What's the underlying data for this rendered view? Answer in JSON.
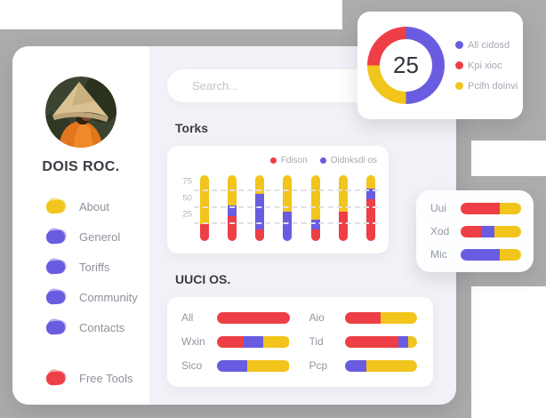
{
  "palette": {
    "red": "#ee3e46",
    "yellow": "#f2c51d",
    "purple": "#6a5ce0",
    "background_gray": "#acacac"
  },
  "sidebar": {
    "profile_name": "DOIS ROC.",
    "items": [
      {
        "label": "About",
        "color": "yellow"
      },
      {
        "label": "Generol",
        "color": "purple"
      },
      {
        "label": "Toriffs",
        "color": "purple"
      },
      {
        "label": "Community",
        "color": "purple"
      },
      {
        "label": "Contacts",
        "color": "purple"
      }
    ],
    "footer_item": {
      "label": "Free Tools",
      "color": "red"
    }
  },
  "search": {
    "placeholder": "Search..."
  },
  "torks": {
    "title": "Torks",
    "legend": [
      {
        "label": "Fdison",
        "color": "red"
      },
      {
        "label": "Oidnksdi os",
        "color": "purple"
      }
    ],
    "y_ticks": [
      75,
      50,
      25
    ],
    "y_max": 105,
    "bars": [
      {
        "segments": [
          {
            "color": "red",
            "pct": 25
          },
          {
            "color": "yellow",
            "pct": 75
          }
        ]
      },
      {
        "segments": [
          {
            "color": "red",
            "pct": 38
          },
          {
            "color": "purple",
            "pct": 16
          },
          {
            "color": "yellow",
            "pct": 46
          }
        ]
      },
      {
        "segments": [
          {
            "color": "red",
            "pct": 17
          },
          {
            "color": "purple",
            "pct": 55
          },
          {
            "color": "yellow",
            "pct": 28
          }
        ]
      },
      {
        "segments": [
          {
            "color": "purple",
            "pct": 45
          },
          {
            "color": "yellow",
            "pct": 55
          }
        ]
      },
      {
        "segments": [
          {
            "color": "red",
            "pct": 17
          },
          {
            "color": "purple",
            "pct": 16
          },
          {
            "color": "yellow",
            "pct": 67
          }
        ]
      },
      {
        "segments": [
          {
            "color": "red",
            "pct": 45
          },
          {
            "color": "yellow",
            "pct": 55
          }
        ]
      },
      {
        "segments": [
          {
            "color": "red",
            "pct": 64
          },
          {
            "color": "purple",
            "pct": 15
          },
          {
            "color": "yellow",
            "pct": 21
          }
        ]
      }
    ]
  },
  "uuci": {
    "title": "UUCI OS.",
    "columns": [
      [
        {
          "label": "All",
          "segments": [
            {
              "color": "red",
              "pct": 100
            }
          ]
        },
        {
          "label": "Wxin",
          "segments": [
            {
              "color": "red",
              "pct": 37
            },
            {
              "color": "purple",
              "pct": 27
            },
            {
              "color": "yellow",
              "pct": 36
            }
          ]
        },
        {
          "label": "Sico",
          "segments": [
            {
              "color": "purple",
              "pct": 42
            },
            {
              "color": "yellow",
              "pct": 58
            }
          ]
        }
      ],
      [
        {
          "label": "Aio",
          "segments": [
            {
              "color": "red",
              "pct": 50
            },
            {
              "color": "yellow",
              "pct": 50
            }
          ]
        },
        {
          "label": "Tid",
          "segments": [
            {
              "color": "red",
              "pct": 74
            },
            {
              "color": "purple",
              "pct": 14
            },
            {
              "color": "yellow",
              "pct": 12
            }
          ]
        },
        {
          "label": "Pcp",
          "segments": [
            {
              "color": "purple",
              "pct": 30
            },
            {
              "color": "yellow",
              "pct": 70
            }
          ]
        }
      ]
    ]
  },
  "donut": {
    "center_value": "25",
    "ring": [
      {
        "color": "purple",
        "pct": 50
      },
      {
        "color": "yellow",
        "pct": 25
      },
      {
        "color": "red",
        "pct": 25
      }
    ],
    "legend": [
      {
        "label": "All cidosd",
        "color": "purple"
      },
      {
        "label": "Kpi xioc",
        "color": "red"
      },
      {
        "label": "Pcifn doinvi",
        "color": "yellow"
      }
    ]
  },
  "mini_panel": {
    "rows": [
      {
        "label": "Uui",
        "segments": [
          {
            "color": "red",
            "pct": 65
          },
          {
            "color": "yellow",
            "pct": 35
          }
        ]
      },
      {
        "label": "Xod",
        "segments": [
          {
            "color": "red",
            "pct": 34
          },
          {
            "color": "purple",
            "pct": 22
          },
          {
            "color": "yellow",
            "pct": 44
          }
        ]
      },
      {
        "label": "Mic",
        "segments": [
          {
            "color": "purple",
            "pct": 65
          },
          {
            "color": "yellow",
            "pct": 35
          }
        ]
      }
    ]
  }
}
